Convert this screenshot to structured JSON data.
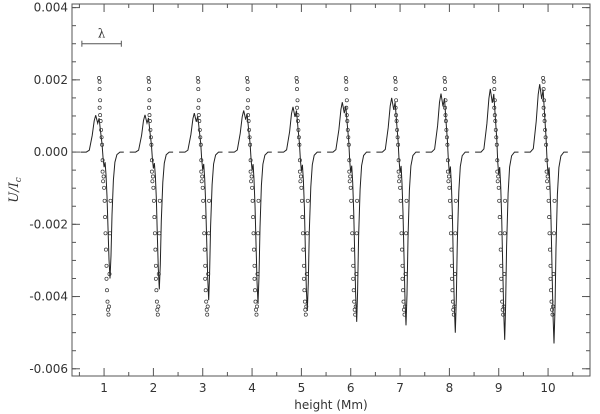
{
  "chart_data": {
    "type": "line",
    "xlabel": "height (Mm)",
    "ylabel": "U/I",
    "ylabel_subscript": "c",
    "xlim": [
      0.35,
      10.85
    ],
    "ylim": [
      -0.0062,
      0.0041
    ],
    "x_ticks": [
      1,
      2,
      3,
      4,
      5,
      6,
      7,
      8,
      9,
      10
    ],
    "x_tick_labels": [
      "1",
      "2",
      "3",
      "4",
      "5",
      "6",
      "7",
      "8",
      "9",
      "10"
    ],
    "y_ticks": [
      -0.006,
      -0.004,
      -0.002,
      0.0,
      0.002,
      0.004
    ],
    "y_tick_labels": [
      "-0.006",
      "-0.004",
      "-0.002",
      "0.000",
      "0.002",
      "0.004"
    ],
    "grid": false,
    "annotation": {
      "text": "λ",
      "x_start": 0.55,
      "x_end": 1.35,
      "y": 0.003
    },
    "profile_centers": [
      1,
      2,
      3,
      4,
      5,
      6,
      7,
      8,
      9,
      10
    ],
    "line_profiles": [
      {
        "center": 1,
        "pos_peak": 0.00102,
        "neg_peak": -0.0035
      },
      {
        "center": 2,
        "pos_peak": 0.00103,
        "neg_peak": -0.0038
      },
      {
        "center": 3,
        "pos_peak": 0.00108,
        "neg_peak": -0.0041
      },
      {
        "center": 4,
        "pos_peak": 0.00115,
        "neg_peak": -0.0042
      },
      {
        "center": 5,
        "pos_peak": 0.00125,
        "neg_peak": -0.0044
      },
      {
        "center": 6,
        "pos_peak": 0.00138,
        "neg_peak": -0.0047
      },
      {
        "center": 7,
        "pos_peak": 0.0015,
        "neg_peak": -0.0048
      },
      {
        "center": 8,
        "pos_peak": 0.00162,
        "neg_peak": -0.005
      },
      {
        "center": 9,
        "pos_peak": 0.00175,
        "neg_peak": -0.0052
      },
      {
        "center": 10,
        "pos_peak": 0.00188,
        "neg_peak": -0.0053
      }
    ],
    "observed_points": {
      "peak_value": 0.00205,
      "trough_value": -0.0045
    }
  }
}
